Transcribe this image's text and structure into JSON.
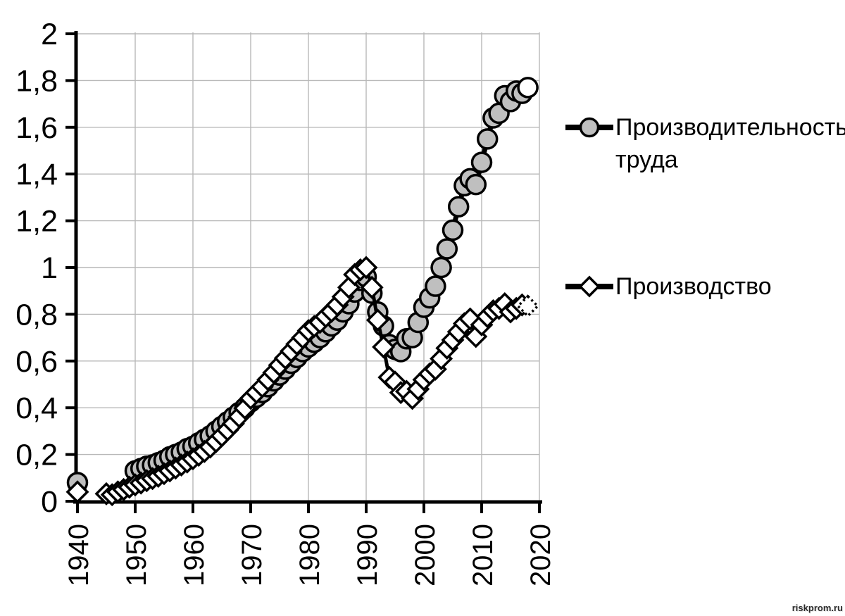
{
  "watermark": "riskprom.ru",
  "legend": {
    "items": [
      {
        "label": "Производительность труда",
        "marker": "circle-gray"
      },
      {
        "label": "Производство",
        "marker": "diamond-white"
      }
    ]
  },
  "colors": {
    "line": "#000000",
    "circle_fill": "#bfbfbf",
    "diamond_fill": "#ffffff",
    "grid": "#b8b8b8",
    "axis": "#000000",
    "text": "#000000"
  },
  "chart_data": {
    "type": "line",
    "title": "",
    "xlabel": "",
    "ylabel": "",
    "xlim": [
      1940,
      2020
    ],
    "ylim": [
      0,
      2
    ],
    "grid": true,
    "legend_position": "right",
    "x_ticks": [
      1940,
      1950,
      1960,
      1970,
      1980,
      1990,
      2000,
      2010,
      2020
    ],
    "x_tick_labels": [
      "1940",
      "1950",
      "1960",
      "1970",
      "1980",
      "1990",
      "2000",
      "2010",
      "2020"
    ],
    "y_ticks": [
      0,
      0.2,
      0.4,
      0.6,
      0.8,
      1,
      1.2,
      1.4,
      1.6,
      1.8,
      2
    ],
    "y_tick_labels": [
      "0",
      "0,2",
      "0,4",
      "0,6",
      "0,8",
      "1",
      "1,2",
      "1,4",
      "1,6",
      "1,8",
      "2"
    ],
    "series": [
      {
        "name": "Производительность труда",
        "marker": "circle",
        "marker_fill": "#bfbfbf",
        "line_width": 7,
        "last_point": "open",
        "last_segment": "solid",
        "segments": [
          [
            [
              1940,
              0.08
            ]
          ],
          [
            [
              1950,
              0.13
            ],
            [
              1951,
              0.14
            ],
            [
              1952,
              0.15
            ],
            [
              1953,
              0.155
            ],
            [
              1954,
              0.165
            ],
            [
              1955,
              0.175
            ],
            [
              1956,
              0.19
            ],
            [
              1957,
              0.2
            ],
            [
              1958,
              0.21
            ],
            [
              1959,
              0.225
            ],
            [
              1960,
              0.235
            ],
            [
              1961,
              0.25
            ],
            [
              1962,
              0.265
            ],
            [
              1963,
              0.28
            ],
            [
              1964,
              0.3
            ],
            [
              1965,
              0.32
            ],
            [
              1966,
              0.34
            ],
            [
              1967,
              0.36
            ],
            [
              1968,
              0.38
            ],
            [
              1969,
              0.4
            ],
            [
              1970,
              0.425
            ],
            [
              1971,
              0.445
            ],
            [
              1972,
              0.465
            ],
            [
              1973,
              0.49
            ],
            [
              1974,
              0.515
            ],
            [
              1975,
              0.54
            ],
            [
              1976,
              0.565
            ],
            [
              1977,
              0.59
            ],
            [
              1978,
              0.615
            ],
            [
              1979,
              0.64
            ],
            [
              1980,
              0.66
            ],
            [
              1981,
              0.68
            ],
            [
              1982,
              0.7
            ],
            [
              1983,
              0.725
            ],
            [
              1984,
              0.75
            ],
            [
              1985,
              0.775
            ],
            [
              1986,
              0.81
            ],
            [
              1987,
              0.845
            ],
            [
              1988,
              0.895
            ],
            [
              1989,
              0.945
            ],
            [
              1990,
              0.96
            ],
            [
              1991,
              0.89
            ],
            [
              1992,
              0.81
            ],
            [
              1993,
              0.75
            ],
            [
              1994,
              0.67
            ],
            [
              1995,
              0.65
            ],
            [
              1996,
              0.64
            ],
            [
              1997,
              0.695
            ],
            [
              1998,
              0.7
            ],
            [
              1999,
              0.765
            ],
            [
              2000,
              0.83
            ],
            [
              2001,
              0.87
            ],
            [
              2002,
              0.92
            ],
            [
              2003,
              1.0
            ],
            [
              2004,
              1.08
            ],
            [
              2005,
              1.16
            ],
            [
              2006,
              1.26
            ],
            [
              2007,
              1.35
            ],
            [
              2008,
              1.38
            ],
            [
              2009,
              1.355
            ],
            [
              2010,
              1.45
            ],
            [
              2011,
              1.55
            ],
            [
              2012,
              1.64
            ],
            [
              2013,
              1.66
            ],
            [
              2014,
              1.735
            ],
            [
              2015,
              1.71
            ],
            [
              2016,
              1.755
            ],
            [
              2017,
              1.745
            ],
            [
              2018,
              1.77
            ]
          ]
        ]
      },
      {
        "name": "Производство",
        "marker": "diamond",
        "marker_fill": "#ffffff",
        "line_width": 5,
        "last_point": "dotted",
        "last_segment": "dotted",
        "segments": [
          [
            [
              1940,
              0.04
            ]
          ],
          [
            [
              1945,
              0.032
            ],
            [
              1946,
              0.028
            ],
            [
              1947,
              0.04
            ],
            [
              1948,
              0.05
            ],
            [
              1949,
              0.06
            ],
            [
              1950,
              0.07
            ],
            [
              1951,
              0.078
            ],
            [
              1952,
              0.088
            ],
            [
              1953,
              0.097
            ],
            [
              1954,
              0.107
            ],
            [
              1955,
              0.118
            ],
            [
              1956,
              0.13
            ],
            [
              1957,
              0.142
            ],
            [
              1958,
              0.155
            ],
            [
              1959,
              0.168
            ],
            [
              1960,
              0.182
            ],
            [
              1961,
              0.197
            ],
            [
              1962,
              0.213
            ],
            [
              1963,
              0.232
            ],
            [
              1964,
              0.255
            ],
            [
              1965,
              0.28
            ],
            [
              1966,
              0.305
            ],
            [
              1967,
              0.332
            ],
            [
              1968,
              0.362
            ],
            [
              1969,
              0.398
            ],
            [
              1970,
              0.44
            ],
            [
              1971,
              0.465
            ],
            [
              1972,
              0.49
            ],
            [
              1973,
              0.52
            ],
            [
              1974,
              0.55
            ],
            [
              1975,
              0.582
            ],
            [
              1976,
              0.612
            ],
            [
              1977,
              0.642
            ],
            [
              1978,
              0.672
            ],
            [
              1979,
              0.7
            ],
            [
              1980,
              0.73
            ],
            [
              1981,
              0.748
            ],
            [
              1982,
              0.765
            ],
            [
              1983,
              0.79
            ],
            [
              1984,
              0.812
            ],
            [
              1985,
              0.84
            ],
            [
              1986,
              0.875
            ],
            [
              1987,
              0.915
            ],
            [
              1988,
              0.97
            ],
            [
              1989,
              0.99
            ],
            [
              1990,
              1.0
            ],
            [
              1991,
              0.915
            ],
            [
              1992,
              0.775
            ],
            [
              1993,
              0.66
            ],
            [
              1994,
              0.53
            ],
            [
              1995,
              0.51
            ],
            [
              1996,
              0.465
            ],
            [
              1997,
              0.47
            ],
            [
              1998,
              0.44
            ],
            [
              1999,
              0.48
            ],
            [
              2000,
              0.52
            ],
            [
              2001,
              0.545
            ],
            [
              2002,
              0.565
            ],
            [
              2003,
              0.61
            ],
            [
              2004,
              0.655
            ],
            [
              2005,
              0.69
            ],
            [
              2006,
              0.725
            ],
            [
              2007,
              0.76
            ],
            [
              2008,
              0.78
            ],
            [
              2009,
              0.705
            ],
            [
              2010,
              0.755
            ],
            [
              2011,
              0.79
            ],
            [
              2012,
              0.815
            ],
            [
              2013,
              0.825
            ],
            [
              2014,
              0.845
            ],
            [
              2015,
              0.81
            ],
            [
              2016,
              0.825
            ],
            [
              2017,
              0.84
            ],
            [
              2018,
              0.835
            ]
          ]
        ]
      }
    ]
  }
}
